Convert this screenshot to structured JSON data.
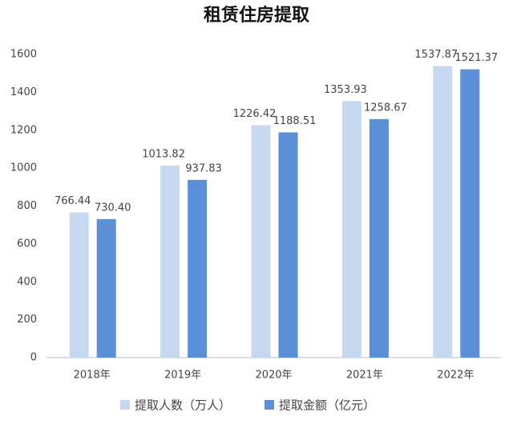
{
  "chart_data": {
    "type": "bar",
    "title": "租赁住房提取",
    "categories": [
      "2018年",
      "2019年",
      "2020年",
      "2021年",
      "2022年"
    ],
    "series": [
      {
        "name": "提取人数（万人）",
        "color": "#c6d9f1",
        "values": [
          766.44,
          1013.82,
          1226.42,
          1353.93,
          1537.87
        ]
      },
      {
        "name": "提取金额（亿元）",
        "color": "#5b8fd6",
        "values": [
          730.4,
          937.83,
          1188.51,
          1258.67,
          1521.37
        ],
        "value_labels": [
          "730.40",
          "937.83",
          "1188.51",
          "1258.67",
          "1521.37"
        ]
      }
    ],
    "ylim": [
      0,
      1600
    ],
    "yticks": [
      0,
      200,
      400,
      600,
      800,
      1000,
      1200,
      1400,
      1600
    ],
    "grid": false
  }
}
